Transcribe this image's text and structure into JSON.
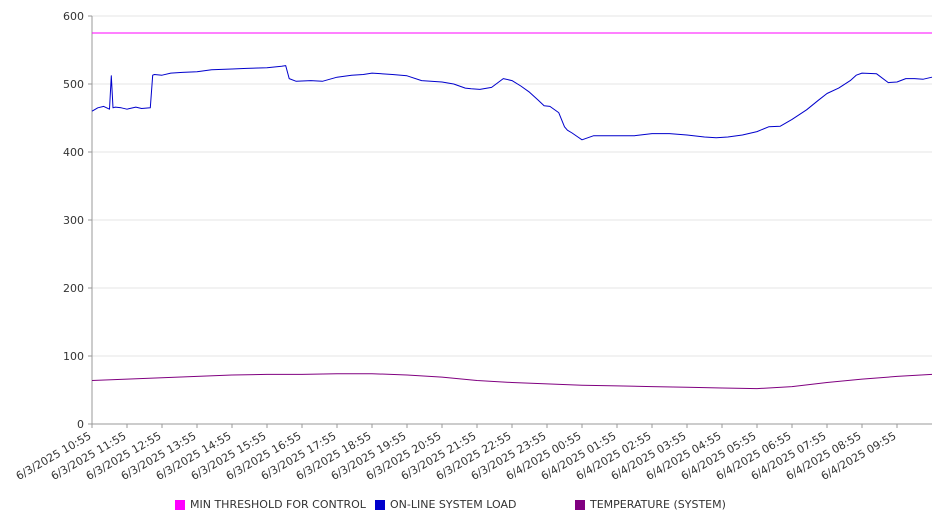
{
  "chart_data": {
    "type": "line",
    "title": "",
    "xlabel": "",
    "ylabel": "",
    "ylim": [
      0,
      600
    ],
    "yticks": [
      0,
      100,
      200,
      300,
      400,
      500,
      600
    ],
    "grid": "horizontal",
    "legend_position": "bottom",
    "x_tick_labels": [
      "6/3/2025 10:55",
      "6/3/2025 11:55",
      "6/3/2025 12:55",
      "6/3/2025 13:55",
      "6/3/2025 14:55",
      "6/3/2025 15:55",
      "6/3/2025 16:55",
      "6/3/2025 17:55",
      "6/3/2025 18:55",
      "6/3/2025 19:55",
      "6/3/2025 20:55",
      "6/3/2025 21:55",
      "6/3/2025 22:55",
      "6/3/2025 23:55",
      "6/4/2025 00:55",
      "6/4/2025 01:55",
      "6/4/2025 02:55",
      "6/4/2025 03:55",
      "6/4/2025 04:55",
      "6/4/2025 05:55",
      "6/4/2025 06:55",
      "6/4/2025 07:55",
      "6/4/2025 08:55",
      "6/4/2025 09:55"
    ],
    "x_range": [
      "6/3/2025 10:55",
      "6/4/2025 10:55"
    ],
    "series": [
      {
        "name": "MIN THRESHOLD FOR CONTROL",
        "color": "#ff00ff",
        "x": [
          "6/3/2025 10:55",
          "6/4/2025 10:55"
        ],
        "y": [
          575,
          575
        ]
      },
      {
        "name": "ON-LINE SYSTEM LOAD",
        "color": "#0000cc",
        "x": [
          "6/3/2025 10:55",
          "6/3/2025 11:05",
          "6/3/2025 11:15",
          "6/3/2025 11:25",
          "6/3/2025 11:28",
          "6/3/2025 11:31",
          "6/3/2025 11:35",
          "6/3/2025 11:45",
          "6/3/2025 11:55",
          "6/3/2025 12:10",
          "6/3/2025 12:20",
          "6/3/2025 12:35",
          "6/3/2025 12:39",
          "6/3/2025 12:42",
          "6/3/2025 12:55",
          "6/3/2025 13:10",
          "6/3/2025 13:30",
          "6/3/2025 13:55",
          "6/3/2025 14:20",
          "6/3/2025 14:55",
          "6/3/2025 15:20",
          "6/3/2025 15:55",
          "6/3/2025 16:20",
          "6/3/2025 16:27",
          "6/3/2025 16:33",
          "6/3/2025 16:45",
          "6/3/2025 17:10",
          "6/3/2025 17:30",
          "6/3/2025 17:55",
          "6/3/2025 18:20",
          "6/3/2025 18:40",
          "6/3/2025 18:55",
          "6/3/2025 19:30",
          "6/3/2025 19:55",
          "6/3/2025 20:20",
          "6/3/2025 20:55",
          "6/3/2025 21:15",
          "6/3/2025 21:35",
          "6/3/2025 21:45",
          "6/3/2025 22:00",
          "6/3/2025 22:20",
          "6/3/2025 22:40",
          "6/3/2025 22:55",
          "6/3/2025 23:10",
          "6/3/2025 23:25",
          "6/3/2025 23:40",
          "6/3/2025 23:50",
          "6/4/2025 00:00",
          "6/4/2025 00:15",
          "6/4/2025 00:25",
          "6/4/2025 00:30",
          "6/4/2025 00:38",
          "6/4/2025 00:48",
          "6/4/2025 00:55",
          "6/4/2025 01:15",
          "6/4/2025 01:55",
          "6/4/2025 02:25",
          "6/4/2025 02:35",
          "6/4/2025 02:55",
          "6/4/2025 03:25",
          "6/4/2025 03:55",
          "6/4/2025 04:25",
          "6/4/2025 04:45",
          "6/4/2025 05:05",
          "6/4/2025 05:30",
          "6/4/2025 05:55",
          "6/4/2025 06:15",
          "6/4/2025 06:35",
          "6/4/2025 06:55",
          "6/4/2025 07:20",
          "6/4/2025 07:40",
          "6/4/2025 07:55",
          "6/4/2025 08:15",
          "6/4/2025 08:35",
          "6/4/2025 08:45",
          "6/4/2025 08:55",
          "6/4/2025 09:20",
          "6/4/2025 09:40",
          "6/4/2025 09:55",
          "6/4/2025 10:10",
          "6/4/2025 10:25",
          "6/4/2025 10:40",
          "6/4/2025 10:55"
        ],
        "y": [
          460,
          465,
          467,
          463,
          512,
          465,
          466,
          465,
          463,
          466,
          464,
          465,
          513,
          514,
          513,
          516,
          517,
          518,
          521,
          522,
          523,
          524,
          526,
          527,
          508,
          504,
          505,
          504,
          510,
          513,
          514,
          516,
          514,
          512,
          505,
          503,
          500,
          494,
          493,
          492,
          495,
          508,
          505,
          497,
          488,
          476,
          468,
          467,
          458,
          437,
          432,
          428,
          422,
          418,
          424,
          424,
          424,
          425,
          427,
          427,
          425,
          422,
          421,
          422,
          425,
          430,
          437,
          438,
          448,
          462,
          476,
          486,
          494,
          505,
          513,
          516,
          515,
          502,
          503,
          508,
          508,
          507,
          510
        ]
      },
      {
        "name": "TEMPERATURE (SYSTEM)",
        "color": "#800080",
        "x": [
          "6/3/2025 10:55",
          "6/3/2025 11:55",
          "6/3/2025 12:55",
          "6/3/2025 13:55",
          "6/3/2025 14:55",
          "6/3/2025 15:55",
          "6/3/2025 16:55",
          "6/3/2025 17:55",
          "6/3/2025 18:55",
          "6/3/2025 19:55",
          "6/3/2025 20:55",
          "6/3/2025 21:55",
          "6/3/2025 22:55",
          "6/3/2025 23:55",
          "6/4/2025 00:55",
          "6/4/2025 01:55",
          "6/4/2025 02:55",
          "6/4/2025 03:55",
          "6/4/2025 04:55",
          "6/4/2025 05:55",
          "6/4/2025 06:55",
          "6/4/2025 07:55",
          "6/4/2025 08:55",
          "6/4/2025 09:55",
          "6/4/2025 10:55"
        ],
        "y": [
          64,
          66,
          68,
          70,
          72,
          73,
          73,
          74,
          74,
          72,
          69,
          64,
          61,
          59,
          57,
          56,
          55,
          54,
          53,
          52,
          55,
          61,
          66,
          70,
          73
        ]
      }
    ]
  }
}
